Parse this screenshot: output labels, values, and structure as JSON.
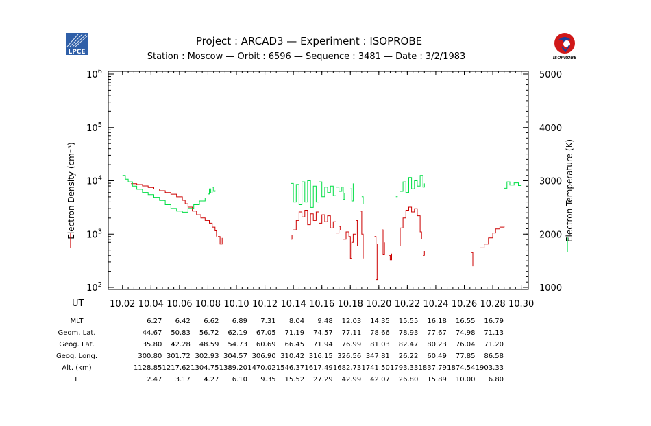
{
  "header": {
    "title": "Project : ARCAD3  —  Experiment : ISOPROBE",
    "subtitle": "Station : Moscow  —  Orbit :  6596  —  Sequence : 3481  —  Date : 3/2/1983",
    "logo_left_text": "LPCE",
    "logo_right_text": "ISOPROBE"
  },
  "colors": {
    "density": "#cc0000",
    "temperature": "#00dd44",
    "axis": "#000000",
    "logo_blue": "#2f5fa8"
  },
  "chart_data": {
    "type": "line",
    "xlabel": "UT",
    "ylabel": "Electron Density (cm⁻³)",
    "y2label": "Electron Temperature (K)",
    "xlim": [
      10.01,
      10.305
    ],
    "ylim": [
      100,
      1000000
    ],
    "yscale": "log",
    "y2lim": [
      1000,
      5000
    ],
    "x_ticks": [
      "10.02",
      "10.04",
      "10.06",
      "10.08",
      "10.10",
      "10.12",
      "10.14",
      "10.16",
      "10.18",
      "10.20",
      "10.22",
      "10.24",
      "10.26",
      "10.28",
      "10.30"
    ],
    "y_ticks": [
      {
        "base": "10",
        "exp": "2",
        "value": 100
      },
      {
        "base": "10",
        "exp": "3",
        "value": 1000
      },
      {
        "base": "10",
        "exp": "4",
        "value": 10000
      },
      {
        "base": "10",
        "exp": "5",
        "value": 100000
      },
      {
        "base": "10",
        "exp": "6",
        "value": 1000000
      }
    ],
    "y2_ticks": [
      "1000",
      "2000",
      "3000",
      "4000",
      "5000"
    ],
    "series": [
      {
        "name": "Electron Density",
        "axis": "left",
        "segments": [
          [
            [
              10.026,
              8800
            ],
            [
              10.03,
              8500
            ],
            [
              10.034,
              8000
            ],
            [
              10.038,
              7500
            ],
            [
              10.042,
              7000
            ],
            [
              10.046,
              6500
            ],
            [
              10.05,
              6000
            ],
            [
              10.054,
              5600
            ],
            [
              10.058,
              5000
            ],
            [
              10.062,
              4300
            ],
            [
              10.064,
              3700
            ],
            [
              10.066,
              3200
            ],
            [
              10.069,
              2700
            ],
            [
              10.072,
              2300
            ],
            [
              10.075,
              2000
            ],
            [
              10.078,
              1800
            ],
            [
              10.081,
              1600
            ],
            [
              10.083,
              1350
            ],
            [
              10.085,
              1150
            ],
            [
              10.086,
              900
            ]
          ],
          [
            [
              10.087,
              900
            ],
            [
              10.0885,
              650
            ],
            [
              10.09,
              850
            ]
          ],
          [
            [
              10.138,
              800
            ],
            [
              10.139,
              950
            ]
          ],
          [
            [
              10.14,
              1200
            ],
            [
              10.142,
              1800
            ],
            [
              10.144,
              2600
            ],
            [
              10.146,
              2100
            ],
            [
              10.148,
              2800
            ],
            [
              10.15,
              1500
            ],
            [
              10.152,
              2400
            ],
            [
              10.154,
              1800
            ],
            [
              10.156,
              2600
            ],
            [
              10.158,
              1600
            ],
            [
              10.16,
              2300
            ],
            [
              10.162,
              1700
            ],
            [
              10.164,
              2200
            ],
            [
              10.166,
              1300
            ],
            [
              10.168,
              1700
            ],
            [
              10.17,
              1050
            ],
            [
              10.172,
              1400
            ],
            [
              10.173,
              1200
            ]
          ],
          [
            [
              10.175,
              800
            ],
            [
              10.177,
              1100
            ],
            [
              10.179,
              900
            ],
            [
              10.18,
              350
            ],
            [
              10.181,
              700
            ],
            [
              10.182,
              1000
            ],
            [
              10.184,
              1800
            ],
            [
              10.185,
              600
            ]
          ],
          [
            [
              10.187,
              2700
            ],
            [
              10.188,
              1000
            ],
            [
              10.189,
              350
            ]
          ],
          [
            [
              10.197,
              900
            ],
            [
              10.198,
              140
            ],
            [
              10.199,
              650
            ]
          ],
          [
            [
              10.202,
              1200
            ],
            [
              10.203,
              420
            ],
            [
              10.204,
              700
            ]
          ],
          [
            [
              10.207,
              400
            ],
            [
              10.208,
              330
            ],
            [
              10.209,
              430
            ]
          ],
          [
            [
              10.213,
              600
            ],
            [
              10.215,
              1300
            ],
            [
              10.217,
              2000
            ],
            [
              10.219,
              2800
            ],
            [
              10.221,
              3200
            ],
            [
              10.223,
              2600
            ],
            [
              10.225,
              3000
            ],
            [
              10.227,
              2200
            ],
            [
              10.229,
              1100
            ],
            [
              10.23,
              800
            ]
          ],
          [
            [
              10.231,
              400
            ],
            [
              10.232,
              480
            ]
          ],
          [
            [
              10.265,
              450
            ],
            [
              10.266,
              250
            ]
          ],
          [
            [
              10.271,
              550
            ],
            [
              10.274,
              650
            ],
            [
              10.277,
              850
            ],
            [
              10.28,
              1050
            ],
            [
              10.282,
              1250
            ],
            [
              10.285,
              1350
            ],
            [
              10.288,
              1400
            ]
          ]
        ]
      },
      {
        "name": "Electron Temperature",
        "axis": "right",
        "segments": [
          [
            [
              10.02,
              3100
            ],
            [
              10.022,
              3030
            ],
            [
              10.024,
              2980
            ],
            [
              10.027,
              2900
            ],
            [
              10.03,
              2840
            ],
            [
              10.034,
              2780
            ],
            [
              10.038,
              2740
            ],
            [
              10.042,
              2690
            ],
            [
              10.046,
              2630
            ],
            [
              10.05,
              2550
            ],
            [
              10.054,
              2480
            ],
            [
              10.058,
              2430
            ],
            [
              10.062,
              2410
            ],
            [
              10.066,
              2480
            ],
            [
              10.07,
              2550
            ],
            [
              10.074,
              2620
            ],
            [
              10.078,
              2680
            ]
          ],
          [
            [
              10.08,
              2750
            ],
            [
              10.081,
              2850
            ],
            [
              10.082,
              2770
            ],
            [
              10.083,
              2880
            ],
            [
              10.084,
              2800
            ],
            [
              10.085,
              2820
            ]
          ],
          [
            [
              10.138,
              2950
            ],
            [
              10.14,
              2600
            ],
            [
              10.142,
              2930
            ],
            [
              10.144,
              2550
            ],
            [
              10.146,
              2980
            ],
            [
              10.148,
              2600
            ],
            [
              10.15,
              3000
            ],
            [
              10.152,
              2500
            ],
            [
              10.154,
              2900
            ],
            [
              10.156,
              2600
            ],
            [
              10.158,
              2980
            ],
            [
              10.16,
              2700
            ],
            [
              10.162,
              2880
            ],
            [
              10.164,
              2780
            ],
            [
              10.166,
              2900
            ],
            [
              10.168,
              2720
            ],
            [
              10.17,
              2880
            ],
            [
              10.172,
              2800
            ],
            [
              10.174,
              2880
            ],
            [
              10.175,
              2650
            ],
            [
              10.176,
              2770
            ]
          ],
          [
            [
              10.18,
              2850
            ],
            [
              10.181,
              2620
            ],
            [
              10.182,
              2950
            ]
          ],
          [
            [
              10.188,
              2700
            ],
            [
              10.189,
              2560
            ]
          ],
          [
            [
              10.212,
              2700
            ],
            [
              10.213,
              2720
            ]
          ],
          [
            [
              10.215,
              2800
            ],
            [
              10.217,
              2980
            ],
            [
              10.219,
              2780
            ],
            [
              10.221,
              3060
            ],
            [
              10.223,
              2850
            ],
            [
              10.225,
              3000
            ],
            [
              10.227,
              2900
            ],
            [
              10.229,
              3100
            ],
            [
              10.231,
              2880
            ],
            [
              10.232,
              2950
            ]
          ],
          [
            [
              10.288,
              2860
            ],
            [
              10.29,
              2980
            ],
            [
              10.292,
              2920
            ],
            [
              10.295,
              2960
            ],
            [
              10.298,
              2910
            ],
            [
              10.3,
              2930
            ]
          ]
        ]
      }
    ]
  },
  "table": {
    "rows": [
      {
        "label": "MLT",
        "values": [
          "6.27",
          "6.42",
          "6.62",
          "6.89",
          "7.31",
          "8.04",
          "9.48",
          "12.03",
          "14.35",
          "15.55",
          "16.18",
          "16.55",
          "16.79"
        ]
      },
      {
        "label": "Geom. Lat.",
        "values": [
          "44.67",
          "50.83",
          "56.72",
          "62.19",
          "67.05",
          "71.19",
          "74.57",
          "77.11",
          "78.66",
          "78.93",
          "77.67",
          "74.98",
          "71.13"
        ]
      },
      {
        "label": "Geog. Lat.",
        "values": [
          "35.80",
          "42.28",
          "48.59",
          "54.73",
          "60.69",
          "66.45",
          "71.94",
          "76.99",
          "81.03",
          "82.47",
          "80.23",
          "76.04",
          "71.20"
        ]
      },
      {
        "label": "Geog. Long.",
        "values": [
          "300.80",
          "301.72",
          "302.93",
          "304.57",
          "306.90",
          "310.42",
          "316.15",
          "326.56",
          "347.81",
          "26.22",
          "60.49",
          "77.85",
          "86.58"
        ]
      },
      {
        "label": "Alt. (km)",
        "values": [
          "1128.85",
          "1217.62",
          "1304.75",
          "1389.20",
          "1470.02",
          "1546.37",
          "1617.49",
          "1682.73",
          "1741.50",
          "1793.33",
          "1837.79",
          "1874.54",
          "1903.33"
        ]
      },
      {
        "label": "L",
        "values": [
          "2.47",
          "3.17",
          "4.27",
          "6.10",
          "9.35",
          "15.52",
          "27.29",
          "42.99",
          "42.07",
          "26.80",
          "15.89",
          "10.00",
          "6.80"
        ]
      }
    ]
  }
}
